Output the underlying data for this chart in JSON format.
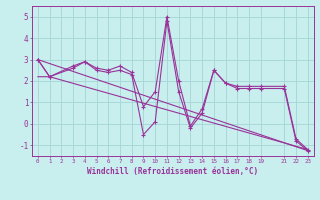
{
  "xlabel": "Windchill (Refroidissement éolien,°C)",
  "bg_color": "#c8eeee",
  "grid_color": "#a8d8d8",
  "line_color": "#993399",
  "xlim": [
    -0.5,
    23.5
  ],
  "ylim": [
    -1.5,
    5.5
  ],
  "yticks": [
    -1,
    0,
    1,
    2,
    3,
    4,
    5
  ],
  "xticks": [
    0,
    1,
    2,
    3,
    4,
    5,
    6,
    7,
    8,
    9,
    10,
    11,
    12,
    13,
    14,
    15,
    16,
    17,
    18,
    19,
    21,
    22,
    23
  ],
  "line1_x": [
    0,
    1,
    3,
    4,
    5,
    6,
    7,
    8,
    9,
    10,
    11,
    12,
    13,
    14,
    15,
    16,
    17,
    18,
    19,
    21,
    22,
    23
  ],
  "line1_y": [
    3.0,
    2.2,
    2.7,
    2.9,
    2.6,
    2.5,
    2.7,
    2.4,
    0.8,
    1.5,
    5.0,
    2.0,
    -0.1,
    0.7,
    2.5,
    1.9,
    1.75,
    1.75,
    1.75,
    1.75,
    -0.7,
    -1.2
  ],
  "line2_x": [
    0,
    1,
    3,
    4,
    5,
    6,
    7,
    8,
    9,
    10,
    11,
    12,
    13,
    14,
    15,
    16,
    17,
    18,
    19,
    21,
    22,
    23
  ],
  "line2_y": [
    3.0,
    2.2,
    2.6,
    2.9,
    2.5,
    2.4,
    2.5,
    2.3,
    -0.5,
    0.1,
    4.8,
    1.5,
    -0.2,
    0.5,
    2.5,
    1.9,
    1.65,
    1.65,
    1.65,
    1.65,
    -0.8,
    -1.25
  ],
  "line3_x": [
    0,
    23
  ],
  "line3_y": [
    3.0,
    -1.25
  ],
  "line4_x": [
    0,
    1,
    23
  ],
  "line4_y": [
    2.2,
    2.2,
    -1.2
  ]
}
